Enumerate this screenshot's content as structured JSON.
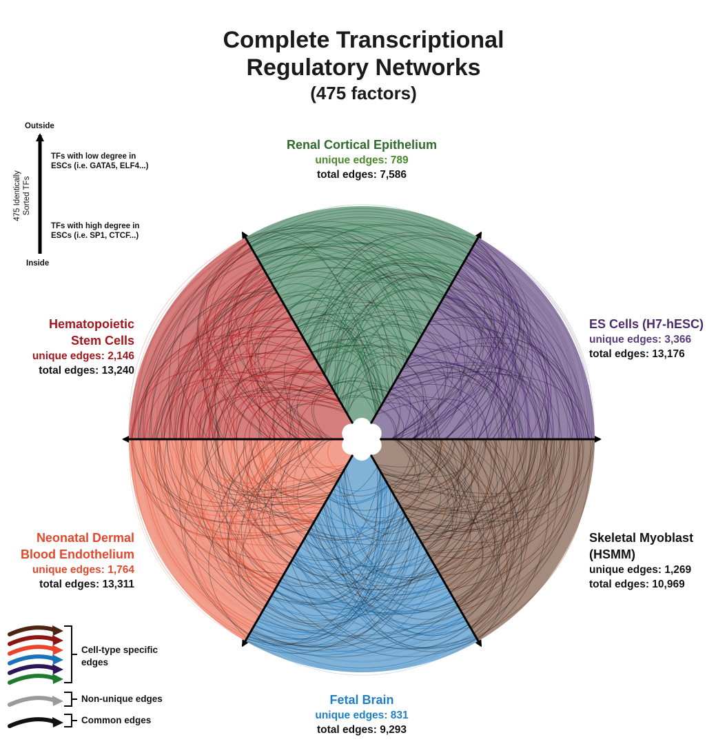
{
  "title": {
    "line1": "Complete Transcriptional",
    "line2": "Regulatory Networks",
    "line3": "(475 factors)"
  },
  "axis_key": {
    "outside": "Outside",
    "inside": "Inside",
    "axis_label_line1": "475 Identically",
    "axis_label_line2": "Sorted TFs",
    "low_degree_line1": "TFs with low degree in",
    "low_degree_line2": "ESCs (i.e. GATA5, ELF4...)",
    "high_degree_line1": "TFs with high degree in",
    "high_degree_line2": "ESCs (i.e. SP1, CTCF...)"
  },
  "cell_types": [
    {
      "key": "renal",
      "name_lines": [
        "Renal Cortical Epithelium"
      ],
      "unique": "unique edges: 789",
      "total": "total edges: 7,586",
      "color": "#2e6b2a"
    },
    {
      "key": "esc",
      "name_lines": [
        "ES Cells (H7-hESC)"
      ],
      "unique": "unique edges: 3,366",
      "total": "total edges: 13,176",
      "color": "#4b2a6e"
    },
    {
      "key": "hsmm",
      "name_lines": [
        "Skeletal Myoblast",
        "(HSMM)"
      ],
      "unique": "unique edges: 1,269",
      "total": "total edges: 10,969",
      "color": "#222222"
    },
    {
      "key": "brain",
      "name_lines": [
        "Fetal Brain"
      ],
      "unique": "unique edges: 831",
      "total": "total edges: 9,293",
      "color": "#1f7fc4"
    },
    {
      "key": "endo",
      "name_lines": [
        "Neonatal Dermal",
        "Blood Endothelium"
      ],
      "unique": "unique edges: 1,764",
      "total": "total edges: 13,311",
      "color": "#e4472c"
    },
    {
      "key": "hsc",
      "name_lines": [
        "Hematopoietic",
        "Stem Cells"
      ],
      "unique": "unique edges: 2,146",
      "total": "total edges: 13,240",
      "color": "#a5161c"
    }
  ],
  "sector_colors": {
    "renal": "#17653a",
    "esc": "#3c1b63",
    "hsmm": "#5a2b14",
    "brain": "#1a72b8",
    "endo": "#e8502f",
    "hsc": "#b01414"
  },
  "legend": {
    "arrow_colors": [
      "#4a2410",
      "#8e1414",
      "#e8452c",
      "#1a72b8",
      "#2c1456",
      "#1f7a2e"
    ],
    "cell_type_line1": "Cell-type specific",
    "cell_type_line2": "edges",
    "non_unique_color": "#9a9a9a",
    "non_unique": "Non-unique edges",
    "common_color": "#111111",
    "common": "Common edges"
  }
}
